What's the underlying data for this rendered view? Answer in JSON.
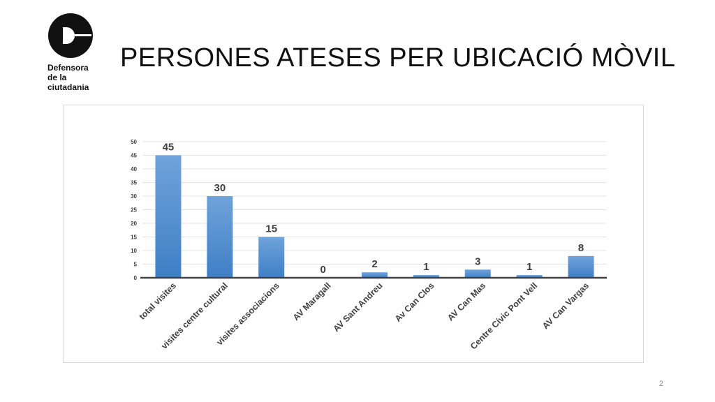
{
  "slide": {
    "title": "PERSONES ATESES PER UBICACIÓ MÒVIL",
    "page_number": "2"
  },
  "logo": {
    "text": "Defensora\nde la\nciutadania",
    "icon": "defensora-logo-icon"
  },
  "colors": {
    "bar_top": "#6fa3db",
    "bar_bottom": "#3f7fc6",
    "axis": "#404040",
    "grid": "#e3e3e3",
    "label": "#404040"
  },
  "chart_data": {
    "type": "bar",
    "categories": [
      "total visites",
      "visites centre cultural",
      "visites associacions",
      "AV Maragall",
      "AV Sant Andreu",
      "Av Can Clos",
      "AV Can Mas",
      "Centre Cívic Pont Vell",
      "AV Can Vargas"
    ],
    "values": [
      45,
      30,
      15,
      0,
      2,
      1,
      3,
      1,
      8
    ],
    "title": "",
    "xlabel": "",
    "ylabel": "",
    "ylim": [
      0,
      50
    ],
    "yticks": [
      0,
      5,
      10,
      15,
      20,
      25,
      30,
      35,
      40,
      45,
      50
    ],
    "grid": true,
    "legend": "none",
    "data_labels": true
  }
}
